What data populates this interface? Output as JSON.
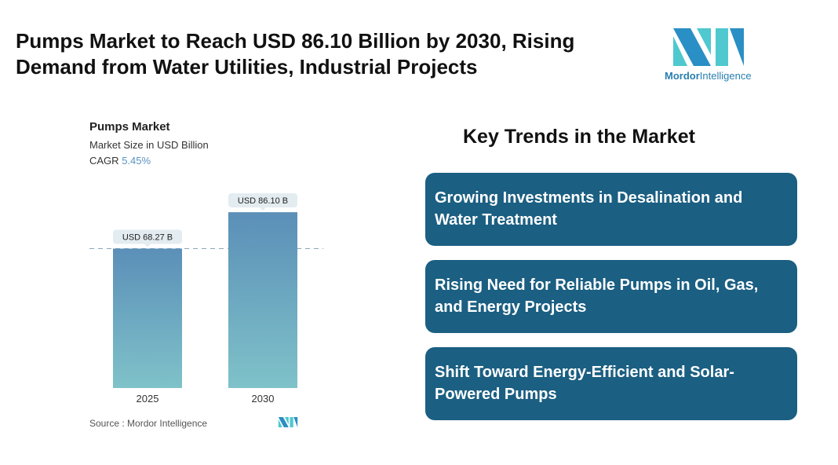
{
  "title": "Pumps Market to Reach USD 86.10 Billion by 2030, Rising Demand from Water Utilities, Industrial Projects",
  "logo": {
    "brand_a": "Mordor",
    "brand_b": "Intelligence",
    "colors": [
      "#2a8fc4",
      "#4fc8cf"
    ]
  },
  "chart_data": {
    "type": "bar",
    "title": "Pumps Market",
    "subtitle": "Market Size in USD Billion",
    "cagr_label": "CAGR",
    "cagr_value": "5.45%",
    "categories": [
      "2025",
      "2030"
    ],
    "values": [
      68.27,
      86.1
    ],
    "data_labels": [
      "USD 68.27 B",
      "USD 86.10 B"
    ],
    "ylim": [
      0,
      90
    ],
    "bar_color_top": "#5b8fb8",
    "bar_color_bottom": "#7fc2c9",
    "reference_line": "dashed at 2025 value",
    "source": "Source :  Mordor Intelligence"
  },
  "trends": {
    "heading": "Key Trends in the Market",
    "items": [
      "Growing Investments in Desalination and Water Treatment",
      "Rising Need for Reliable Pumps in Oil, Gas, and Energy Projects",
      "Shift Toward Energy-Efficient and Solar-Powered Pumps"
    ],
    "color": "#1b5f82"
  }
}
